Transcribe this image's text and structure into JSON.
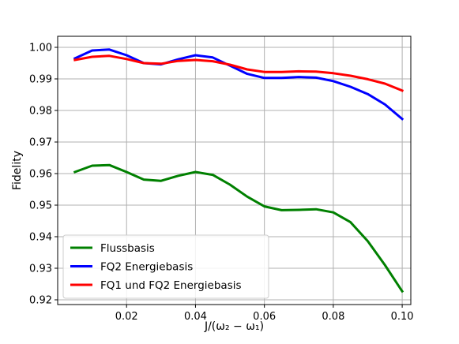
{
  "chart_data": {
    "type": "line",
    "xlabel": "J/(ω₂ − ω₁)",
    "ylabel": "Fidelity",
    "xlim": [
      0.0,
      0.1025
    ],
    "ylim": [
      0.9185,
      1.0035
    ],
    "xticks": [
      0.02,
      0.04,
      0.06,
      0.08,
      0.1
    ],
    "xtick_labels": [
      "0.02",
      "0.04",
      "0.06",
      "0.08",
      "0.10"
    ],
    "yticks": [
      0.92,
      0.93,
      0.94,
      0.95,
      0.96,
      0.97,
      0.98,
      0.99,
      1.0
    ],
    "ytick_labels": [
      "0.92",
      "0.93",
      "0.94",
      "0.95",
      "0.96",
      "0.97",
      "0.98",
      "0.99",
      "1.00"
    ],
    "grid": true,
    "legend_position": "lower-left",
    "x": [
      0.005,
      0.01,
      0.015,
      0.02,
      0.025,
      0.03,
      0.035,
      0.04,
      0.045,
      0.05,
      0.055,
      0.06,
      0.065,
      0.07,
      0.075,
      0.08,
      0.085,
      0.09,
      0.095,
      0.1
    ],
    "series": [
      {
        "name": "Flussbasis",
        "color": "#008000",
        "values": [
          0.9605,
          0.9625,
          0.9627,
          0.9605,
          0.9581,
          0.9577,
          0.9593,
          0.9605,
          0.9596,
          0.9565,
          0.9527,
          0.9496,
          0.9484,
          0.9485,
          0.9487,
          0.9477,
          0.9446,
          0.9386,
          0.931,
          0.9227
        ]
      },
      {
        "name": "FQ2 Energiebasis",
        "color": "#0000ff",
        "values": [
          0.9965,
          0.999,
          0.9993,
          0.9975,
          0.995,
          0.9946,
          0.9962,
          0.9975,
          0.9968,
          0.9942,
          0.9916,
          0.9903,
          0.9903,
          0.9906,
          0.9904,
          0.9893,
          0.9875,
          0.9852,
          0.9819,
          0.9773
        ]
      },
      {
        "name": "FQ1 und FQ2 Energiebasis",
        "color": "#ff0000",
        "values": [
          0.996,
          0.997,
          0.9973,
          0.9963,
          0.995,
          0.9948,
          0.9957,
          0.996,
          0.9956,
          0.9945,
          0.993,
          0.9922,
          0.9922,
          0.9924,
          0.9923,
          0.9918,
          0.991,
          0.9899,
          0.9885,
          0.9863
        ]
      }
    ]
  }
}
